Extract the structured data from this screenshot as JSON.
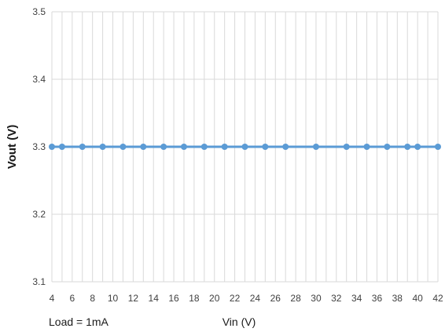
{
  "chart_data": {
    "type": "line",
    "xlabel": "Vin (V)",
    "ylabel": "Vout (V)",
    "annotation": "Load = 1mA",
    "ylim": [
      3.1,
      3.5
    ],
    "yticks": [
      "3.1",
      "3.2",
      "3.3",
      "3.4",
      "3.5"
    ],
    "ytick_values": [
      3.1,
      3.2,
      3.3,
      3.4,
      3.5
    ],
    "xticks": [
      "4",
      "6",
      "8",
      "10",
      "12",
      "14",
      "16",
      "18",
      "20",
      "22",
      "24",
      "26",
      "28",
      "30",
      "32",
      "34",
      "36",
      "38",
      "40",
      "42"
    ],
    "grid": true,
    "series": [
      {
        "color": "#5b9bd5",
        "x": [
          4,
          5,
          7,
          9,
          11,
          13,
          15,
          17,
          19,
          21,
          23,
          25,
          27,
          30,
          33,
          35,
          37,
          39,
          40,
          42
        ],
        "values": [
          3.3,
          3.3,
          3.3,
          3.3,
          3.3,
          3.3,
          3.3,
          3.3,
          3.3,
          3.3,
          3.3,
          3.3,
          3.3,
          3.3,
          3.3,
          3.3,
          3.3,
          3.3,
          3.3,
          3.3
        ]
      }
    ]
  }
}
